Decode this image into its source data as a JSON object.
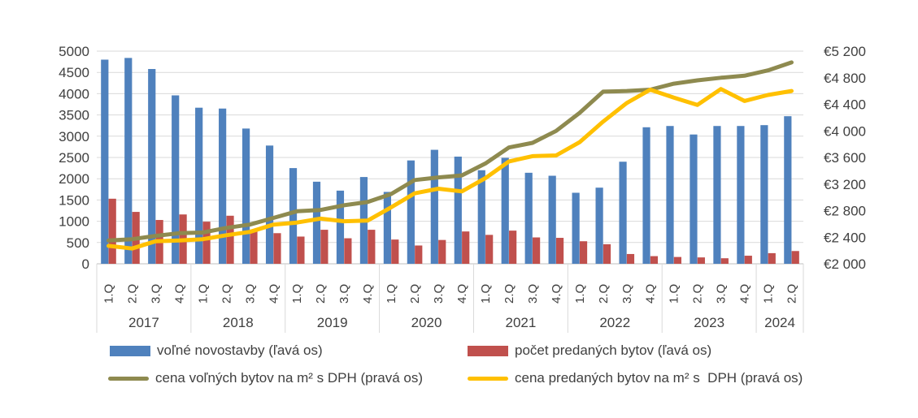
{
  "chart_data": {
    "type": "combo-bar-line",
    "years": [
      {
        "label": "2017",
        "quarters": [
          "1.Q",
          "2.Q",
          "3.Q",
          "4.Q"
        ]
      },
      {
        "label": "2018",
        "quarters": [
          "1.Q",
          "2.Q",
          "3.Q",
          "4.Q"
        ]
      },
      {
        "label": "2019",
        "quarters": [
          "1.Q",
          "2.Q",
          "3.Q",
          "4.Q"
        ]
      },
      {
        "label": "2020",
        "quarters": [
          "1.Q",
          "2.Q",
          "3.Q",
          "4.Q"
        ]
      },
      {
        "label": "2021",
        "quarters": [
          "1.Q",
          "2.Q",
          "3.Q",
          "4.Q"
        ]
      },
      {
        "label": "2022",
        "quarters": [
          "1.Q",
          "2.Q",
          "3.Q",
          "4.Q"
        ]
      },
      {
        "label": "2023",
        "quarters": [
          "1.Q",
          "2.Q",
          "3.Q",
          "4.Q"
        ]
      },
      {
        "label": "2024",
        "quarters": [
          "1.Q",
          "2.Q"
        ]
      }
    ],
    "left_axis": {
      "min": 0,
      "max": 5000,
      "tick_step": 500,
      "tick_labels_top_to_bottom": [
        "5000",
        "4500",
        "4000",
        "3500",
        "3000",
        "2500",
        "2000",
        "1500",
        "1000",
        "500",
        "0"
      ]
    },
    "right_axis": {
      "min": 2000,
      "max": 5200,
      "tick_step": 400,
      "tick_labels_top_to_bottom": [
        "€5 200",
        "€4 800",
        "€4 400",
        "€4 000",
        "€3 600",
        "€3 200",
        "€2 800",
        "€2 400",
        "€2 000"
      ]
    },
    "grid": true,
    "legend_position": "bottom",
    "colors": {
      "grid": "#d9d9d9",
      "axis_line": "#bfbfbf",
      "text": "#404040"
    },
    "series": [
      {
        "name": "voľné novostavby (ľavá os)",
        "type": "bar",
        "axis": "left",
        "color": "#4F81BD",
        "values": [
          4800,
          4840,
          4580,
          3960,
          3670,
          3650,
          3180,
          2780,
          2250,
          1930,
          1720,
          2040,
          1690,
          2430,
          2680,
          2520,
          2200,
          2490,
          2140,
          2070,
          1670,
          1790,
          2400,
          3210,
          3240,
          3040,
          3240,
          3240,
          3260,
          3470
        ]
      },
      {
        "name": "počet predaných bytov (ľavá os)",
        "type": "bar",
        "axis": "left",
        "color": "#C0504D",
        "values": [
          1530,
          1220,
          1030,
          1160,
          990,
          1130,
          780,
          720,
          640,
          800,
          600,
          800,
          570,
          430,
          560,
          760,
          680,
          780,
          620,
          610,
          530,
          460,
          230,
          180,
          160,
          150,
          130,
          190,
          250,
          300
        ]
      },
      {
        "name": "cena voľných bytov na m² s DPH (pravá os)",
        "type": "line",
        "axis": "right",
        "color": "#8E8A4F",
        "values": [
          2350,
          2370,
          2420,
          2460,
          2470,
          2540,
          2590,
          2690,
          2790,
          2810,
          2880,
          2930,
          3050,
          3260,
          3300,
          3330,
          3510,
          3750,
          3820,
          4000,
          4270,
          4590,
          4600,
          4620,
          4710,
          4760,
          4800,
          4830,
          4910,
          5030
        ]
      },
      {
        "name": "cena predaných bytov na m² s  DPH (pravá os)",
        "type": "line",
        "axis": "right",
        "color": "#FFC000",
        "values": [
          2270,
          2230,
          2340,
          2350,
          2370,
          2430,
          2480,
          2590,
          2620,
          2680,
          2640,
          2650,
          2850,
          3060,
          3130,
          3090,
          3290,
          3540,
          3620,
          3630,
          3830,
          4140,
          4420,
          4620,
          4500,
          4390,
          4630,
          4450,
          4540,
          4600
        ]
      }
    ]
  }
}
